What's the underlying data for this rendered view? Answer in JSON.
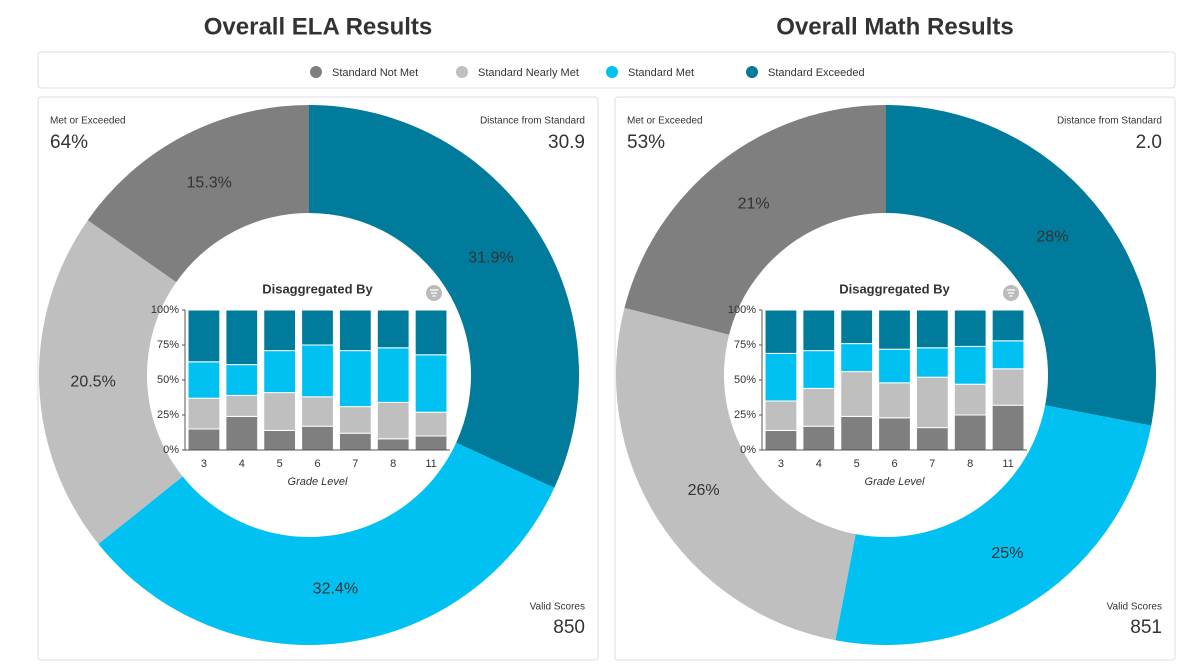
{
  "legend": [
    {
      "name": "Standard Not Met",
      "color": "#7f7f7f"
    },
    {
      "name": "Standard Nearly Met",
      "color": "#bfbfbf"
    },
    {
      "name": "Standard Met",
      "color": "#00c1f1"
    },
    {
      "name": "Standard Exceeded",
      "color": "#007b9c"
    }
  ],
  "panels": [
    {
      "met_label": "Met or Exceeded",
      "met_value": "64%",
      "distance_label": "Distance from Standard",
      "distance_value": "30.9",
      "valid_label": "Valid Scores",
      "valid_value": "850"
    },
    {
      "met_label": "Met or Exceeded",
      "met_value": "53%",
      "distance_label": "Distance from Standard",
      "distance_value": "2.0",
      "valid_label": "Valid Scores",
      "valid_value": "851"
    }
  ],
  "chart_data": [
    {
      "type": "donut",
      "title": "Overall ELA Results",
      "values": [
        15.3,
        20.5,
        32.4,
        31.9
      ],
      "value_labels": [
        "15.3%",
        "20.5%",
        "32.4%",
        "31.9%"
      ]
    },
    {
      "type": "stacked_bar",
      "title": "Disaggregated By",
      "x_label": "Grade Level",
      "categories": [
        "3",
        "4",
        "5",
        "6",
        "7",
        "8",
        "11"
      ],
      "series": [
        {
          "values": [
            15,
            24,
            14,
            17,
            12,
            8,
            10
          ]
        },
        {
          "values": [
            22,
            15,
            27,
            21,
            19,
            26,
            17
          ]
        },
        {
          "values": [
            26,
            22,
            30,
            37,
            40,
            39,
            41
          ]
        },
        {
          "values": [
            37,
            39,
            29,
            25,
            29,
            27,
            32
          ]
        }
      ],
      "ylim": [
        0,
        100
      ],
      "yticks": [
        {
          "value": 0,
          "label": "0%"
        },
        {
          "value": 25,
          "label": "25%"
        },
        {
          "value": 50,
          "label": "50%"
        },
        {
          "value": 75,
          "label": "75%"
        },
        {
          "value": 100,
          "label": "100%"
        }
      ]
    },
    {
      "type": "donut",
      "title": "Overall Math Results",
      "values": [
        21,
        26,
        25,
        28
      ],
      "value_labels": [
        "21%",
        "26%",
        "25%",
        "28%"
      ]
    },
    {
      "type": "stacked_bar",
      "title": "Disaggregated By",
      "x_label": "Grade Level",
      "categories": [
        "3",
        "4",
        "5",
        "6",
        "7",
        "8",
        "11"
      ],
      "series": [
        {
          "values": [
            14,
            17,
            24,
            23,
            16,
            25,
            32
          ]
        },
        {
          "values": [
            21,
            27,
            32,
            25,
            36,
            22,
            26
          ]
        },
        {
          "values": [
            34,
            27,
            20,
            24,
            21,
            27,
            20
          ]
        },
        {
          "values": [
            31,
            29,
            24,
            28,
            27,
            26,
            22
          ]
        }
      ],
      "ylim": [
        0,
        100
      ],
      "yticks": [
        {
          "value": 0,
          "label": "0%"
        },
        {
          "value": 25,
          "label": "25%"
        },
        {
          "value": 50,
          "label": "50%"
        },
        {
          "value": 75,
          "label": "75%"
        },
        {
          "value": 100,
          "label": "100%"
        }
      ]
    }
  ]
}
